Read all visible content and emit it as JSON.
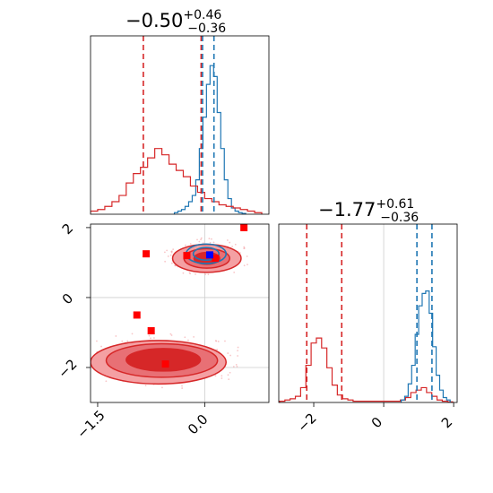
{
  "figure": {
    "type": "corner_plot"
  },
  "chart_data": [
    {
      "type": "histogram",
      "panel": "top-left",
      "title": {
        "median": "−0.50",
        "plus": "+0.46",
        "minus": "−0.36"
      },
      "xlim": [
        -1.6,
        0.9
      ],
      "ticks_shown": false,
      "series": [
        {
          "color": "#1f77b4",
          "bin_centers": [
            -0.4,
            -0.35,
            -0.3,
            -0.25,
            -0.2,
            -0.15,
            -0.1,
            -0.05,
            0.0,
            0.05,
            0.1,
            0.15,
            0.2,
            0.25,
            0.3,
            0.35,
            0.4,
            0.45,
            0.5,
            0.55
          ],
          "counts": [
            0.01,
            0.02,
            0.03,
            0.05,
            0.08,
            0.12,
            0.22,
            0.42,
            0.62,
            0.83,
            0.95,
            0.88,
            0.65,
            0.42,
            0.22,
            0.1,
            0.04,
            0.02,
            0.01,
            0.005
          ]
        },
        {
          "color": "#d62728",
          "bin_centers": [
            -1.65,
            -1.55,
            -1.45,
            -1.35,
            -1.25,
            -1.15,
            -1.05,
            -0.95,
            -0.85,
            -0.75,
            -0.65,
            -0.55,
            -0.45,
            -0.35,
            -0.25,
            -0.15,
            -0.05,
            0.05,
            0.15,
            0.25,
            0.35,
            0.45,
            0.55,
            0.65,
            0.75
          ],
          "counts": [
            0.01,
            0.02,
            0.03,
            0.05,
            0.08,
            0.12,
            0.2,
            0.26,
            0.3,
            0.36,
            0.42,
            0.38,
            0.32,
            0.28,
            0.24,
            0.18,
            0.14,
            0.1,
            0.08,
            0.06,
            0.05,
            0.04,
            0.03,
            0.02,
            0.01
          ]
        }
      ],
      "vlines": [
        {
          "x": -0.86,
          "color": "#d62728"
        },
        {
          "x": -0.05,
          "color": "#d62728"
        },
        {
          "x": -0.03,
          "color": "#1f77b4"
        },
        {
          "x": 0.13,
          "color": "#1f77b4"
        }
      ]
    },
    {
      "type": "scatter_contour",
      "panel": "bottom-left",
      "xlim": [
        -1.6,
        0.9
      ],
      "ylim": [
        -3.0,
        2.1
      ],
      "xticks": [
        {
          "value": -1.5,
          "label": "−1.5"
        },
        {
          "value": 0.0,
          "label": "0.0"
        }
      ],
      "yticks": [
        {
          "value": 2,
          "label": "2"
        },
        {
          "value": 0,
          "label": "0"
        },
        {
          "value": -2,
          "label": "−2"
        }
      ],
      "grid_lines": {
        "x": [
          0.0
        ],
        "y": [
          0,
          -2
        ]
      },
      "blue_contours": [
        {
          "cx": 0.02,
          "cy": 1.25,
          "rx": 0.28,
          "ry": 0.28
        },
        {
          "cx": 0.02,
          "cy": 1.25,
          "rx": 0.18,
          "ry": 0.18
        }
      ],
      "red_contour_levels": [
        {
          "cx": 0.03,
          "cy": 1.12,
          "rx": 0.48,
          "ry": 0.4,
          "fill": "#f4a0a3",
          "stroke": "#d62728"
        },
        {
          "cx": 0.03,
          "cy": 1.12,
          "rx": 0.32,
          "ry": 0.28,
          "fill": "#e87075",
          "stroke": "#d62728"
        },
        {
          "cx": 0.03,
          "cy": 1.12,
          "rx": 0.18,
          "ry": 0.17,
          "fill": "#d62728",
          "stroke": "#d62728"
        },
        {
          "cx": -0.65,
          "cy": -1.85,
          "rx": 0.95,
          "ry": 0.62,
          "fill": "#f4a0a3",
          "stroke": "#d62728"
        },
        {
          "cx": -0.6,
          "cy": -1.8,
          "rx": 0.78,
          "ry": 0.48,
          "fill": "#e87075",
          "stroke": "#d62728"
        },
        {
          "cx": -0.58,
          "cy": -1.78,
          "rx": 0.52,
          "ry": 0.32,
          "fill": "#d62728",
          "stroke": "#d62728"
        }
      ],
      "red_squares": [
        {
          "x": 0.55,
          "y": 2.0
        },
        {
          "x": -0.25,
          "y": 1.2
        },
        {
          "x": 0.15,
          "y": 1.12
        },
        {
          "x": -0.82,
          "y": 1.25
        },
        {
          "x": -0.95,
          "y": -0.5
        },
        {
          "x": -0.75,
          "y": -0.95
        },
        {
          "x": -0.55,
          "y": -1.9
        }
      ],
      "blue_squares": [
        {
          "x": 0.07,
          "y": 1.22
        }
      ]
    },
    {
      "type": "histogram",
      "panel": "bottom-right",
      "title": {
        "median": "−1.77",
        "plus": "+0.61",
        "minus": "−0.36"
      },
      "xlim": [
        -3.0,
        2.1
      ],
      "xticks": [
        {
          "value": -2,
          "label": "−2"
        },
        {
          "value": 0,
          "label": "0"
        },
        {
          "value": 2,
          "label": "2"
        }
      ],
      "grid_lines": {
        "x": [
          0
        ]
      },
      "series": [
        {
          "color": "#d62728",
          "bin_centers": [
            -2.9,
            -2.75,
            -2.6,
            -2.45,
            -2.3,
            -2.15,
            -2.0,
            -1.85,
            -1.7,
            -1.55,
            -1.4,
            -1.25,
            -1.1,
            -0.95,
            -0.8,
            -0.65,
            -0.5,
            -0.35,
            -0.2,
            -0.05,
            0.1,
            0.25,
            0.4,
            0.55,
            0.7,
            0.85,
            1.0,
            1.15,
            1.3,
            1.45,
            1.6,
            1.75,
            1.9
          ],
          "counts": [
            0.01,
            0.02,
            0.03,
            0.05,
            0.12,
            0.3,
            0.48,
            0.52,
            0.44,
            0.28,
            0.14,
            0.06,
            0.03,
            0.02,
            0.01,
            0.01,
            0.01,
            0.01,
            0.01,
            0.01,
            0.01,
            0.01,
            0.01,
            0.02,
            0.04,
            0.08,
            0.1,
            0.12,
            0.08,
            0.05,
            0.02,
            0.01,
            0.005
          ]
        },
        {
          "color": "#1f77b4",
          "bin_centers": [
            0.55,
            0.65,
            0.75,
            0.85,
            0.95,
            1.05,
            1.15,
            1.25,
            1.35,
            1.45,
            1.55,
            1.65,
            1.75,
            1.85
          ],
          "counts": [
            0.02,
            0.05,
            0.15,
            0.3,
            0.55,
            0.78,
            0.88,
            0.9,
            0.72,
            0.45,
            0.22,
            0.1,
            0.04,
            0.02
          ]
        }
      ],
      "vlines": [
        {
          "x": -2.2,
          "color": "#d62728"
        },
        {
          "x": -1.2,
          "color": "#d62728"
        },
        {
          "x": 0.95,
          "color": "#1f77b4"
        },
        {
          "x": 1.38,
          "color": "#1f77b4"
        }
      ]
    }
  ]
}
